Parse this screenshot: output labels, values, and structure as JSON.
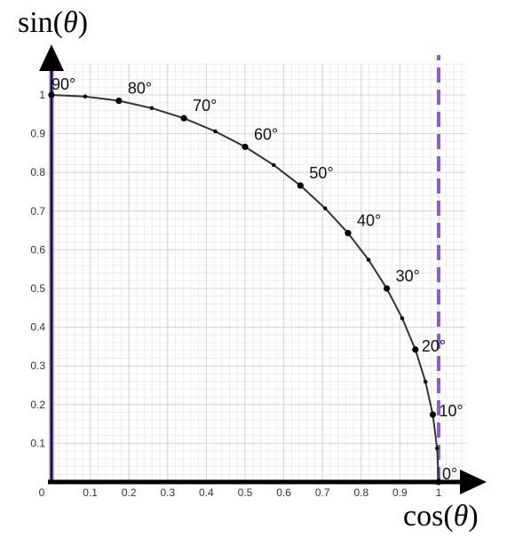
{
  "chart_data": {
    "type": "line",
    "xlabel": {
      "pre": "cos(",
      "var": "θ",
      "post": ")"
    },
    "ylabel": {
      "pre": "sin(",
      "var": "θ",
      "post": ")"
    },
    "xlim": [
      0,
      1
    ],
    "ylim": [
      0,
      1
    ],
    "grid": true,
    "x_ticks": [
      "0",
      "0.1",
      "0.2",
      "0.3",
      "0.4",
      "0.5",
      "0.6",
      "0.7",
      "0.8",
      "0.9",
      "1"
    ],
    "y_ticks": [
      "0.1",
      "0.2",
      "0.3",
      "0.4",
      "0.5",
      "0.6",
      "0.7",
      "0.8",
      "0.9",
      "1"
    ],
    "series": [
      {
        "x": [
          1.0,
          0.996,
          0.985,
          0.966,
          0.94,
          0.906,
          0.866,
          0.819,
          0.766,
          0.707,
          0.643,
          0.574,
          0.5,
          0.423,
          0.342,
          0.259,
          0.174,
          0.087,
          0.0
        ],
        "y": [
          0.0,
          0.087,
          0.174,
          0.259,
          0.342,
          0.423,
          0.5,
          0.574,
          0.643,
          0.707,
          0.766,
          0.819,
          0.866,
          0.906,
          0.94,
          0.966,
          0.985,
          0.996,
          1.0
        ]
      }
    ],
    "angle_labels": [
      {
        "label": "0°",
        "x": 1.0,
        "y": 0.0
      },
      {
        "label": "10°",
        "x": 0.985,
        "y": 0.174
      },
      {
        "label": "20°",
        "x": 0.94,
        "y": 0.342
      },
      {
        "label": "30°",
        "x": 0.866,
        "y": 0.5
      },
      {
        "label": "40°",
        "x": 0.766,
        "y": 0.643
      },
      {
        "label": "50°",
        "x": 0.643,
        "y": 0.766
      },
      {
        "label": "60°",
        "x": 0.5,
        "y": 0.866
      },
      {
        "label": "70°",
        "x": 0.342,
        "y": 0.94
      },
      {
        "label": "80°",
        "x": 0.174,
        "y": 0.985
      },
      {
        "label": "90°",
        "x": 0.0,
        "y": 1.0
      }
    ],
    "reference_lines": [
      {
        "axis": "x",
        "value": 0,
        "style": "solid"
      },
      {
        "axis": "x",
        "value": 1,
        "style": "dashed"
      }
    ],
    "colors": {
      "curve": "#333333",
      "reference": "#8a5cd6",
      "axis": "#000000"
    }
  }
}
